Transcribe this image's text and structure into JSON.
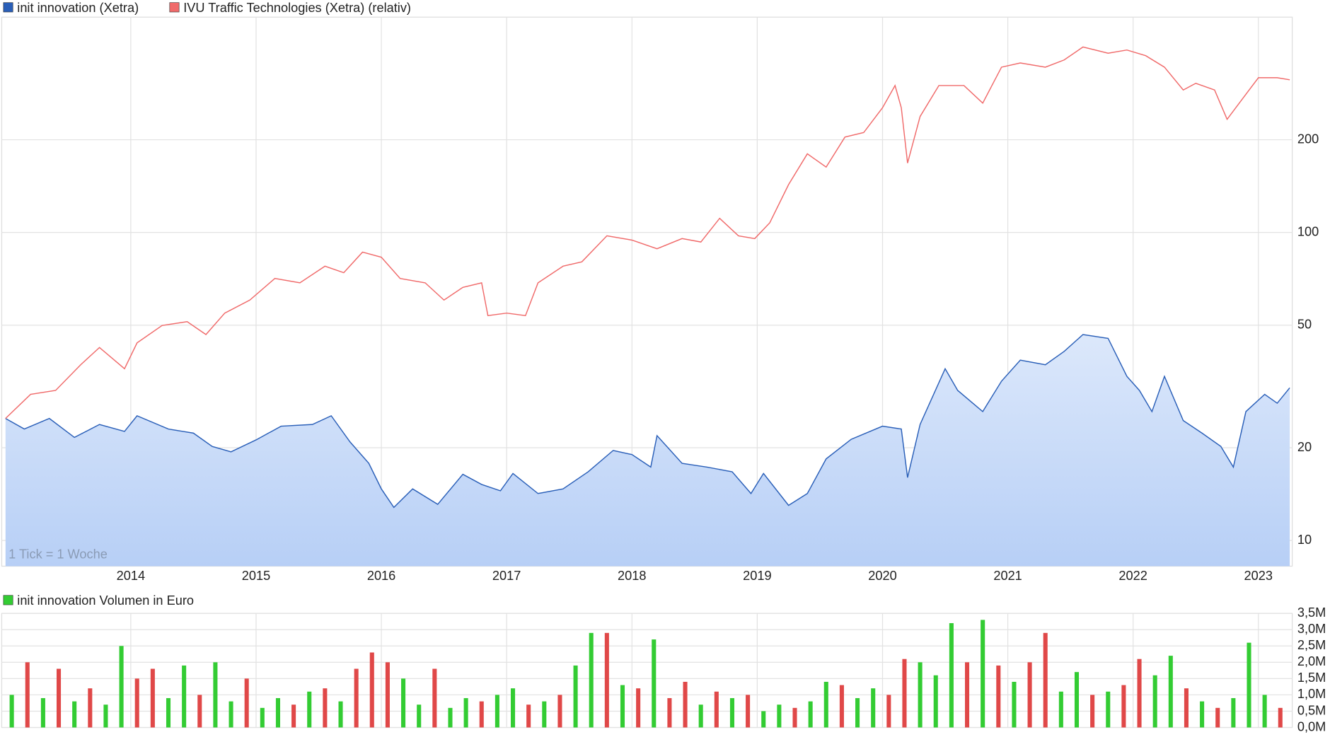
{
  "chart_data": [
    {
      "type": "line",
      "log_scale": true,
      "grid": true,
      "legend": "top-left",
      "note": "1 Tick = 1 Woche",
      "xlim": [
        2012.97,
        2023.27
      ],
      "xticks": [
        2014,
        2015,
        2016,
        2017,
        2018,
        2019,
        2020,
        2021,
        2022,
        2023
      ],
      "ylim": [
        8.25,
        500
      ],
      "yticks": [
        10,
        20,
        50,
        100,
        200
      ],
      "series": [
        {
          "name": "init innovation (Xetra)",
          "color": "#2a5fb8",
          "area": true,
          "x": [
            2013.0,
            2013.15,
            2013.35,
            2013.55,
            2013.75,
            2013.95,
            2014.05,
            2014.3,
            2014.5,
            2014.65,
            2014.8,
            2015.0,
            2015.2,
            2015.45,
            2015.6,
            2015.75,
            2015.9,
            2016.0,
            2016.1,
            2016.25,
            2016.45,
            2016.65,
            2016.8,
            2016.95,
            2017.05,
            2017.25,
            2017.45,
            2017.65,
            2017.85,
            2018.0,
            2018.15,
            2018.2,
            2018.4,
            2018.6,
            2018.8,
            2018.95,
            2019.05,
            2019.25,
            2019.4,
            2019.55,
            2019.75,
            2020.0,
            2020.15,
            2020.2,
            2020.3,
            2020.5,
            2020.6,
            2020.8,
            2020.95,
            2021.1,
            2021.3,
            2021.45,
            2021.6,
            2021.8,
            2021.95,
            2022.05,
            2022.15,
            2022.25,
            2022.4,
            2022.55,
            2022.7,
            2022.8,
            2022.9,
            2023.05,
            2023.15,
            2023.25
          ],
          "values": [
            24.9,
            23.0,
            24.9,
            21.6,
            23.8,
            22.6,
            25.4,
            23.0,
            22.3,
            20.2,
            19.4,
            21.2,
            23.5,
            23.8,
            25.4,
            20.9,
            17.8,
            14.7,
            12.8,
            14.7,
            13.1,
            16.4,
            15.2,
            14.5,
            16.5,
            14.2,
            14.7,
            16.7,
            19.6,
            19.0,
            17.3,
            21.9,
            17.8,
            17.3,
            16.7,
            14.2,
            16.5,
            13.0,
            14.2,
            18.4,
            21.3,
            23.5,
            23.0,
            16.0,
            23.8,
            36.1,
            30.7,
            26.2,
            32.9,
            38.5,
            37.2,
            41.1,
            46.6,
            45.3,
            34.1,
            30.7,
            26.2,
            34.1,
            24.5,
            22.3,
            20.2,
            17.3,
            26.2,
            29.8,
            27.9,
            31.3
          ]
        },
        {
          "name": "IVU Traffic Technologies (Xetra) (relativ)",
          "color": "#f06a6a",
          "x": [
            2013.0,
            2013.2,
            2013.4,
            2013.6,
            2013.75,
            2013.95,
            2014.05,
            2014.25,
            2014.45,
            2014.6,
            2014.75,
            2014.95,
            2015.15,
            2015.35,
            2015.55,
            2015.7,
            2015.85,
            2016.0,
            2016.15,
            2016.35,
            2016.5,
            2016.65,
            2016.8,
            2016.85,
            2017.0,
            2017.15,
            2017.25,
            2017.45,
            2017.6,
            2017.8,
            2018.0,
            2018.2,
            2018.4,
            2018.55,
            2018.7,
            2018.85,
            2018.98,
            2019.1,
            2019.25,
            2019.4,
            2019.55,
            2019.7,
            2019.85,
            2020.0,
            2020.1,
            2020.15,
            2020.2,
            2020.3,
            2020.45,
            2020.65,
            2020.8,
            2020.95,
            2021.1,
            2021.3,
            2021.45,
            2021.6,
            2021.8,
            2021.95,
            2022.1,
            2022.25,
            2022.4,
            2022.5,
            2022.65,
            2022.75,
            2022.9,
            2023.0,
            2023.15,
            2023.25
          ],
          "values": [
            24.9,
            29.8,
            30.7,
            37.2,
            42.3,
            36.1,
            43.8,
            49.9,
            51.3,
            46.6,
            54.7,
            60.3,
            70.9,
            68.6,
            77.7,
            74.0,
            86.3,
            83.1,
            70.9,
            68.6,
            60.3,
            66.3,
            68.6,
            53.7,
            54.7,
            53.7,
            68.6,
            77.7,
            80.3,
            97.5,
            94.4,
            88.5,
            95.5,
            93.1,
            111.1,
            97.5,
            95.5,
            107.5,
            143,
            180,
            163,
            204,
            211,
            254,
            300,
            254,
            168,
            238,
            300,
            300,
            263,
            344,
            355,
            344,
            363,
            400,
            382,
            391,
            375,
            344,
            290,
            305,
            290,
            233,
            281,
            318,
            318,
            313
          ]
        }
      ]
    },
    {
      "type": "bar",
      "grid": true,
      "legend": "top-left",
      "name": "init innovation Volumen in Euro",
      "color": "#33cc33",
      "xlim": [
        2012.97,
        2023.27
      ],
      "ylim": [
        0,
        3.5
      ],
      "yticks": [
        {
          "value": 0,
          "label": "0,0M"
        },
        {
          "value": 0.5,
          "label": "0,5M"
        },
        {
          "value": 1,
          "label": "1,0M"
        },
        {
          "value": 1.5,
          "label": "1,5M"
        },
        {
          "value": 2,
          "label": "2,0M"
        },
        {
          "value": 2.5,
          "label": "2,5M"
        },
        {
          "value": 3,
          "label": "3,0M"
        },
        {
          "value": 3.5,
          "label": "3,5M"
        }
      ],
      "x": [
        2013.05,
        2013.175,
        2013.3,
        2013.425,
        2013.55,
        2013.675,
        2013.8,
        2013.925,
        2014.05,
        2014.175,
        2014.3,
        2014.425,
        2014.55,
        2014.675,
        2014.8,
        2014.925,
        2015.05,
        2015.175,
        2015.3,
        2015.425,
        2015.55,
        2015.675,
        2015.8,
        2015.925,
        2016.05,
        2016.175,
        2016.3,
        2016.425,
        2016.55,
        2016.675,
        2016.8,
        2016.925,
        2017.05,
        2017.175,
        2017.3,
        2017.425,
        2017.55,
        2017.675,
        2017.8,
        2017.925,
        2018.05,
        2018.175,
        2018.3,
        2018.425,
        2018.55,
        2018.675,
        2018.8,
        2018.925,
        2019.05,
        2019.175,
        2019.3,
        2019.425,
        2019.55,
        2019.675,
        2019.8,
        2019.925,
        2020.05,
        2020.175,
        2020.3,
        2020.425,
        2020.55,
        2020.675,
        2020.8,
        2020.925,
        2021.05,
        2021.175,
        2021.3,
        2021.425,
        2021.55,
        2021.675,
        2021.8,
        2021.925,
        2022.05,
        2022.175,
        2022.3,
        2022.425,
        2022.55,
        2022.675,
        2022.8,
        2022.925,
        2023.05,
        2023.175
      ],
      "values": [
        1.0,
        2.0,
        0.9,
        1.8,
        0.8,
        1.2,
        0.7,
        2.5,
        1.5,
        1.8,
        0.9,
        1.9,
        1.0,
        2.0,
        0.8,
        1.5,
        0.6,
        0.9,
        0.7,
        1.1,
        1.2,
        0.8,
        1.8,
        2.3,
        2.0,
        1.5,
        0.7,
        1.8,
        0.6,
        0.9,
        0.8,
        1.0,
        1.2,
        0.7,
        0.8,
        1.0,
        1.9,
        2.9,
        2.9,
        1.3,
        1.2,
        2.7,
        0.9,
        1.4,
        0.7,
        1.1,
        0.9,
        1.0,
        0.5,
        0.7,
        0.6,
        0.8,
        1.4,
        1.3,
        0.9,
        1.2,
        1.0,
        2.1,
        2.0,
        1.6,
        3.2,
        2.0,
        3.3,
        1.9,
        1.4,
        2.0,
        2.9,
        1.1,
        1.7,
        1.0,
        1.1,
        1.3,
        2.1,
        1.6,
        2.2,
        1.2,
        0.8,
        0.6,
        0.9,
        2.6,
        1.0,
        0.6
      ],
      "colors": [
        "#33cc33",
        "#e04848",
        "#33cc33",
        "#e04848",
        "#33cc33",
        "#e04848",
        "#33cc33",
        "#33cc33",
        "#e04848",
        "#e04848",
        "#33cc33",
        "#33cc33",
        "#e04848",
        "#33cc33",
        "#33cc33",
        "#e04848",
        "#33cc33",
        "#33cc33",
        "#e04848",
        "#33cc33",
        "#e04848",
        "#33cc33",
        "#e04848",
        "#e04848",
        "#e04848",
        "#33cc33",
        "#33cc33",
        "#e04848",
        "#33cc33",
        "#33cc33",
        "#e04848",
        "#33cc33",
        "#33cc33",
        "#e04848",
        "#33cc33",
        "#e04848",
        "#33cc33",
        "#33cc33",
        "#e04848",
        "#33cc33",
        "#e04848",
        "#33cc33",
        "#e04848",
        "#e04848",
        "#33cc33",
        "#e04848",
        "#33cc33",
        "#e04848",
        "#33cc33",
        "#33cc33",
        "#e04848",
        "#33cc33",
        "#33cc33",
        "#e04848",
        "#33cc33",
        "#33cc33",
        "#e04848",
        "#e04848",
        "#33cc33",
        "#33cc33",
        "#33cc33",
        "#e04848",
        "#33cc33",
        "#e04848",
        "#33cc33",
        "#e04848",
        "#e04848",
        "#33cc33",
        "#33cc33",
        "#e04848",
        "#33cc33",
        "#e04848",
        "#e04848",
        "#33cc33",
        "#33cc33",
        "#e04848",
        "#33cc33",
        "#e04848",
        "#33cc33",
        "#33cc33",
        "#33cc33",
        "#e04848"
      ]
    }
  ]
}
